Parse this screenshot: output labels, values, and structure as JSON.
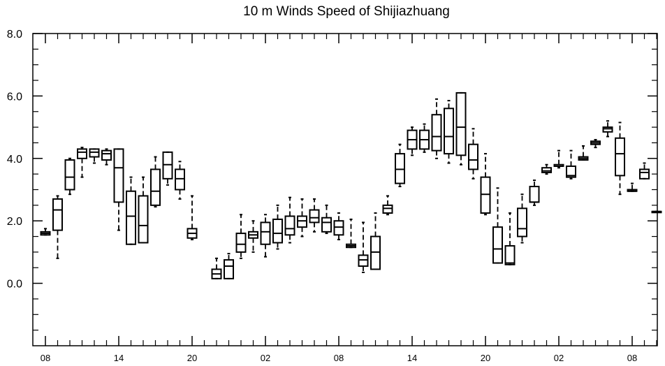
{
  "chart_data": {
    "type": "box",
    "title": "10 m Winds Speed of Shijiazhuang",
    "xlabel": "",
    "ylabel": "",
    "ylim": [
      -2.0,
      8.0
    ],
    "yticks": [
      0.0,
      2.0,
      4.0,
      6.0,
      8.0
    ],
    "ytick_labels": [
      "0.0",
      "2.0",
      "4.0",
      "6.0",
      "8.0"
    ],
    "xlim": [
      -0.5,
      48.0
    ],
    "xticks": [
      0,
      6,
      12,
      18,
      24,
      30,
      36,
      42,
      48
    ],
    "xtick_labels": [
      "08",
      "14",
      "20",
      "02",
      "08",
      "14",
      "20",
      "02",
      "08"
    ],
    "grid": false,
    "boxes": [
      {
        "x": 0,
        "min": 1.55,
        "q1": 1.55,
        "median": 1.6,
        "q3": 1.65,
        "max": 1.75
      },
      {
        "x": 1,
        "min": 0.8,
        "q1": 1.7,
        "median": 2.35,
        "q3": 2.7,
        "max": 2.8
      },
      {
        "x": 2,
        "min": 2.85,
        "q1": 3.0,
        "median": 3.4,
        "q3": 3.95,
        "max": 4.0
      },
      {
        "x": 3,
        "min": 3.4,
        "q1": 4.0,
        "median": 4.2,
        "q3": 4.3,
        "max": 4.35
      },
      {
        "x": 4,
        "min": 3.85,
        "q1": 4.05,
        "median": 4.2,
        "q3": 4.3,
        "max": 4.3
      },
      {
        "x": 5,
        "min": 3.8,
        "q1": 3.95,
        "median": 4.15,
        "q3": 4.25,
        "max": 4.3
      },
      {
        "x": 6,
        "min": 1.7,
        "q1": 2.6,
        "median": 3.7,
        "q3": 4.3,
        "max": 4.3
      },
      {
        "x": 7,
        "min": 1.25,
        "q1": 1.25,
        "median": 2.15,
        "q3": 2.95,
        "max": 3.4
      },
      {
        "x": 8,
        "min": 1.3,
        "q1": 1.3,
        "median": 1.85,
        "q3": 2.8,
        "max": 3.4
      },
      {
        "x": 9,
        "min": 2.45,
        "q1": 2.5,
        "median": 2.95,
        "q3": 3.65,
        "max": 4.05
      },
      {
        "x": 10,
        "min": 3.15,
        "q1": 3.35,
        "median": 3.8,
        "q3": 4.2,
        "max": 4.2
      },
      {
        "x": 11,
        "min": 2.7,
        "q1": 3.0,
        "median": 3.35,
        "q3": 3.65,
        "max": 3.9
      },
      {
        "x": 12,
        "min": 1.4,
        "q1": 1.45,
        "median": 1.6,
        "q3": 1.75,
        "max": 2.8
      },
      {
        "x": 14,
        "min": 0.15,
        "q1": 0.15,
        "median": 0.3,
        "q3": 0.45,
        "max": 0.8
      },
      {
        "x": 15,
        "min": 0.15,
        "q1": 0.15,
        "median": 0.55,
        "q3": 0.75,
        "max": 0.95
      },
      {
        "x": 16,
        "min": 0.8,
        "q1": 1.0,
        "median": 1.25,
        "q3": 1.6,
        "max": 2.2
      },
      {
        "x": 17,
        "min": 1.0,
        "q1": 1.45,
        "median": 1.55,
        "q3": 1.65,
        "max": 2.0
      },
      {
        "x": 18,
        "min": 0.85,
        "q1": 1.25,
        "median": 1.65,
        "q3": 1.95,
        "max": 2.2
      },
      {
        "x": 19,
        "min": 1.1,
        "q1": 1.3,
        "median": 1.6,
        "q3": 2.05,
        "max": 2.5
      },
      {
        "x": 20,
        "min": 1.3,
        "q1": 1.55,
        "median": 1.75,
        "q3": 2.15,
        "max": 2.75
      },
      {
        "x": 21,
        "min": 1.5,
        "q1": 1.8,
        "median": 2.0,
        "q3": 2.15,
        "max": 2.7
      },
      {
        "x": 22,
        "min": 1.65,
        "q1": 1.95,
        "median": 2.1,
        "q3": 2.35,
        "max": 2.7
      },
      {
        "x": 23,
        "min": 1.6,
        "q1": 1.65,
        "median": 1.95,
        "q3": 2.1,
        "max": 2.5
      },
      {
        "x": 24,
        "min": 1.4,
        "q1": 1.55,
        "median": 1.8,
        "q3": 2.0,
        "max": 2.25
      },
      {
        "x": 25,
        "min": 1.15,
        "q1": 1.15,
        "median": 1.2,
        "q3": 1.25,
        "max": 2.05
      },
      {
        "x": 26,
        "min": 0.35,
        "q1": 0.55,
        "median": 0.75,
        "q3": 0.9,
        "max": 1.95
      },
      {
        "x": 27,
        "min": 0.45,
        "q1": 0.45,
        "median": 1.0,
        "q3": 1.5,
        "max": 2.25
      },
      {
        "x": 28,
        "min": 2.2,
        "q1": 2.25,
        "median": 2.4,
        "q3": 2.5,
        "max": 2.8
      },
      {
        "x": 29,
        "min": 3.1,
        "q1": 3.2,
        "median": 3.65,
        "q3": 4.15,
        "max": 4.45
      },
      {
        "x": 30,
        "min": 4.1,
        "q1": 4.3,
        "median": 4.6,
        "q3": 4.9,
        "max": 5.0
      },
      {
        "x": 31,
        "min": 4.2,
        "q1": 4.3,
        "median": 4.6,
        "q3": 4.9,
        "max": 5.1
      },
      {
        "x": 32,
        "min": 4.0,
        "q1": 4.25,
        "median": 4.7,
        "q3": 5.4,
        "max": 5.9
      },
      {
        "x": 33,
        "min": 3.85,
        "q1": 4.15,
        "median": 4.7,
        "q3": 5.6,
        "max": 5.85
      },
      {
        "x": 34,
        "min": 3.8,
        "q1": 4.1,
        "median": 5.0,
        "q3": 6.1,
        "max": 6.1
      },
      {
        "x": 35,
        "min": 3.35,
        "q1": 3.65,
        "median": 3.95,
        "q3": 4.45,
        "max": 4.95
      },
      {
        "x": 36,
        "min": 2.2,
        "q1": 2.25,
        "median": 2.85,
        "q3": 3.4,
        "max": 4.15
      },
      {
        "x": 37,
        "min": 0.65,
        "q1": 0.65,
        "median": 1.1,
        "q3": 1.8,
        "max": 3.05
      },
      {
        "x": 38,
        "min": 0.6,
        "q1": 0.6,
        "median": 0.65,
        "q3": 1.2,
        "max": 2.25
      },
      {
        "x": 39,
        "min": 1.3,
        "q1": 1.5,
        "median": 1.75,
        "q3": 2.4,
        "max": 2.85
      },
      {
        "x": 40,
        "min": 2.5,
        "q1": 2.6,
        "median": 2.6,
        "q3": 3.1,
        "max": 3.3
      },
      {
        "x": 41,
        "min": 3.5,
        "q1": 3.55,
        "median": 3.6,
        "q3": 3.7,
        "max": 3.8
      },
      {
        "x": 42,
        "min": 3.7,
        "q1": 3.75,
        "median": 3.75,
        "q3": 3.8,
        "max": 4.25
      },
      {
        "x": 43,
        "min": 3.35,
        "q1": 3.4,
        "median": 3.45,
        "q3": 3.75,
        "max": 4.25
      },
      {
        "x": 44,
        "min": 3.95,
        "q1": 3.95,
        "median": 4.0,
        "q3": 4.05,
        "max": 4.4
      },
      {
        "x": 45,
        "min": 4.35,
        "q1": 4.45,
        "median": 4.5,
        "q3": 4.55,
        "max": 4.6
      },
      {
        "x": 46,
        "min": 4.7,
        "q1": 4.85,
        "median": 4.95,
        "q3": 5.0,
        "max": 5.2
      },
      {
        "x": 47,
        "min": 2.85,
        "q1": 3.45,
        "median": 4.15,
        "q3": 4.65,
        "max": 5.15
      },
      {
        "x": 48,
        "min": 2.95,
        "q1": 2.95,
        "median": 2.95,
        "q3": 3.0,
        "max": 3.2
      },
      {
        "x": 49,
        "min": 3.35,
        "q1": 3.35,
        "median": 3.55,
        "q3": 3.65,
        "max": 3.85
      },
      {
        "x": 50,
        "min": 2.3,
        "q1": 2.3,
        "median": 2.3,
        "q3": 2.3,
        "max": 2.3
      }
    ]
  }
}
